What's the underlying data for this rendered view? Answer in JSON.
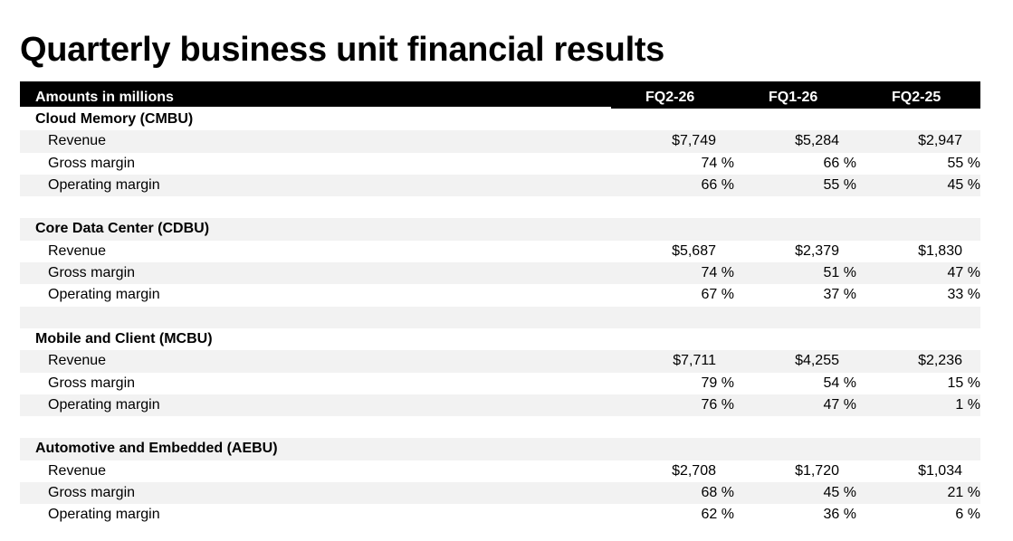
{
  "title": "Quarterly business unit financial results",
  "header": {
    "label": "Amounts in millions",
    "columns": [
      "FQ2-26",
      "FQ1-26",
      "FQ2-25"
    ]
  },
  "units": [
    {
      "name": "Cloud Memory (CMBU)",
      "revenue": [
        "$7,749",
        "$5,284",
        "$2,947"
      ],
      "gross_margin": [
        "74 %",
        "66 %",
        "55 %"
      ],
      "operating_margin": [
        "66 %",
        "55 %",
        "45 %"
      ]
    },
    {
      "name": "Core Data Center (CDBU)",
      "revenue": [
        "$5,687",
        "$2,379",
        "$1,830"
      ],
      "gross_margin": [
        "74 %",
        "51 %",
        "47 %"
      ],
      "operating_margin": [
        "67 %",
        "37 %",
        "33 %"
      ]
    },
    {
      "name": "Mobile and Client (MCBU)",
      "revenue": [
        "$7,711",
        "$4,255",
        "$2,236"
      ],
      "gross_margin": [
        "79 %",
        "54 %",
        "15 %"
      ],
      "operating_margin": [
        "76 %",
        "47 %",
        "1 %"
      ]
    },
    {
      "name": "Automotive and Embedded (AEBU)",
      "revenue": [
        "$2,708",
        "$1,720",
        "$1,034"
      ],
      "gross_margin": [
        "68 %",
        "45 %",
        "21 %"
      ],
      "operating_margin": [
        "62 %",
        "36 %",
        "6 %"
      ]
    }
  ],
  "row_labels": {
    "revenue": "Revenue",
    "gross_margin": "Gross margin",
    "operating_margin": "Operating margin"
  }
}
